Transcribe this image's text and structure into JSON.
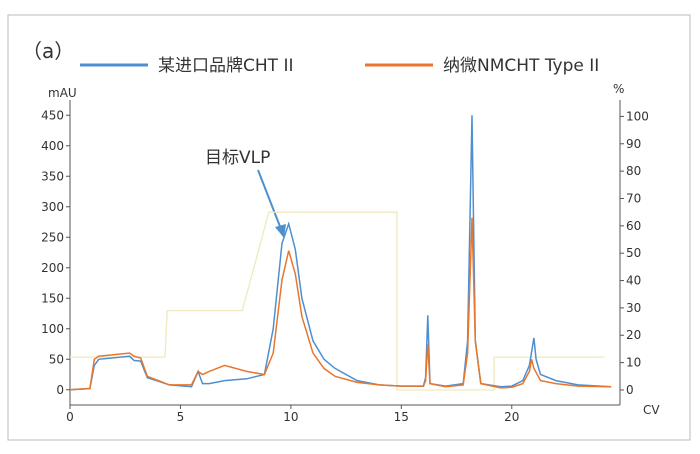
{
  "chart_data": {
    "type": "line",
    "panel_label": "（a）",
    "y_label": "mAU",
    "y2_label": "%",
    "x_label": "CV",
    "annotation": "目标VLP",
    "xlim": [
      0,
      24.9
    ],
    "xticks": [
      0,
      5,
      10,
      15,
      20
    ],
    "ylim": [
      -25,
      475
    ],
    "yticks": [
      0,
      50,
      100,
      150,
      200,
      250,
      300,
      350,
      400,
      450
    ],
    "y2lim": [
      -5.5,
      106
    ],
    "y2ticks": [
      0,
      10,
      20,
      30,
      40,
      50,
      60,
      70,
      80,
      90,
      100
    ],
    "series": [
      {
        "name": "某进口品牌CHT II",
        "color": "#4e8fd0",
        "x": [
          0,
          0.9,
          1.1,
          1.3,
          2.7,
          2.9,
          3.2,
          3.5,
          4.5,
          5.5,
          5.8,
          6.0,
          6.3,
          7.0,
          8.0,
          8.8,
          9.2,
          9.6,
          9.9,
          10.2,
          10.5,
          11,
          11.5,
          12,
          13,
          14,
          15,
          16,
          16.1,
          16.2,
          16.3,
          17,
          17.8,
          18.0,
          18.2,
          18.35,
          18.6,
          19.5,
          20,
          20.5,
          20.8,
          21.0,
          21.1,
          21.3,
          22,
          23,
          24.5
        ],
        "values": [
          0,
          2,
          40,
          50,
          55,
          48,
          47,
          20,
          8,
          5,
          30,
          10,
          10,
          15,
          18,
          25,
          100,
          240,
          272,
          230,
          150,
          80,
          50,
          35,
          15,
          8,
          6,
          6,
          20,
          122,
          10,
          6,
          10,
          80,
          450,
          80,
          10,
          5,
          6,
          15,
          40,
          85,
          50,
          25,
          15,
          8,
          5
        ]
      },
      {
        "name": "纳微NMCHT Type II",
        "color": "#e8762d",
        "x": [
          0,
          0.9,
          1.1,
          1.3,
          2.7,
          2.9,
          3.2,
          3.5,
          4.5,
          5.5,
          5.8,
          6.0,
          6.3,
          7.0,
          8.0,
          8.8,
          9.2,
          9.6,
          9.9,
          10.2,
          10.5,
          11,
          11.5,
          12,
          13,
          14,
          15,
          16,
          16.1,
          16.2,
          16.3,
          17,
          17.8,
          18.0,
          18.2,
          18.35,
          18.6,
          19.5,
          20,
          20.5,
          20.8,
          20.9,
          21.0,
          21.3,
          22,
          23,
          24.5
        ],
        "values": [
          0,
          2,
          50,
          55,
          60,
          55,
          52,
          22,
          8,
          8,
          30,
          25,
          30,
          40,
          30,
          25,
          60,
          180,
          228,
          190,
          120,
          60,
          35,
          22,
          12,
          8,
          6,
          6,
          15,
          75,
          10,
          5,
          8,
          60,
          282,
          80,
          10,
          3,
          4,
          10,
          30,
          50,
          35,
          15,
          10,
          6,
          5
        ]
      }
    ],
    "gradient": {
      "color": "#efe9bf",
      "axis": "y2",
      "x": [
        0,
        4.3,
        4.4,
        7.8,
        9.0,
        14.8,
        14.8,
        19.2,
        19.2,
        24.2
      ],
      "values": [
        12,
        12,
        29,
        29,
        65,
        65,
        0,
        0,
        12,
        12
      ]
    }
  }
}
